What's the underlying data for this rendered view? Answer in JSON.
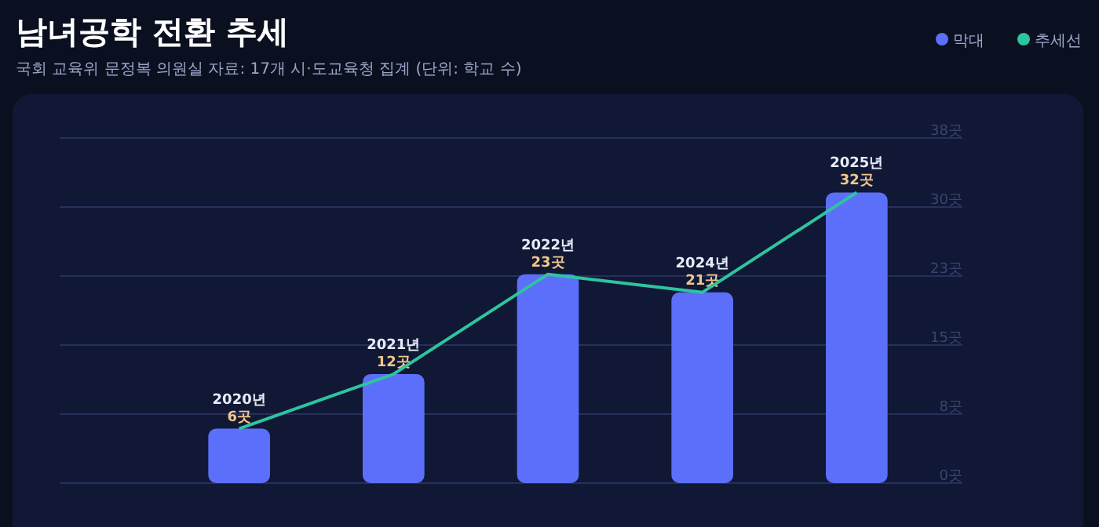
{
  "chart_data": {
    "type": "bar",
    "title": "남녀공학 전환 추세",
    "subtitle": "국회 교육위 문정복 의원실 자료: 17개 시·도교육청 집계 (단위: 학교 수)",
    "categories": [
      "2020년",
      "2021년",
      "2022년",
      "2024년",
      "2025년"
    ],
    "series": [
      {
        "name": "막대",
        "color": "#5b6ffb",
        "values": [
          6,
          12,
          23,
          21,
          32
        ],
        "value_labels": [
          "6곳",
          "12곳",
          "23곳",
          "21곳",
          "32곳"
        ]
      },
      {
        "name": "추세선",
        "type": "line",
        "color": "#2ec4a0",
        "values": [
          6,
          12,
          23,
          21,
          32
        ]
      }
    ],
    "ylim": [
      0,
      38
    ],
    "yticks": [
      {
        "value": 0,
        "label": "0곳"
      },
      {
        "value": 7.6,
        "label": "8곳"
      },
      {
        "value": 15.2,
        "label": "15곳"
      },
      {
        "value": 22.8,
        "label": "23곳"
      },
      {
        "value": 30.4,
        "label": "30곳"
      },
      {
        "value": 38,
        "label": "38곳"
      }
    ],
    "grid": "y",
    "legend": "top right",
    "marker": "none",
    "line_style": "solid"
  }
}
